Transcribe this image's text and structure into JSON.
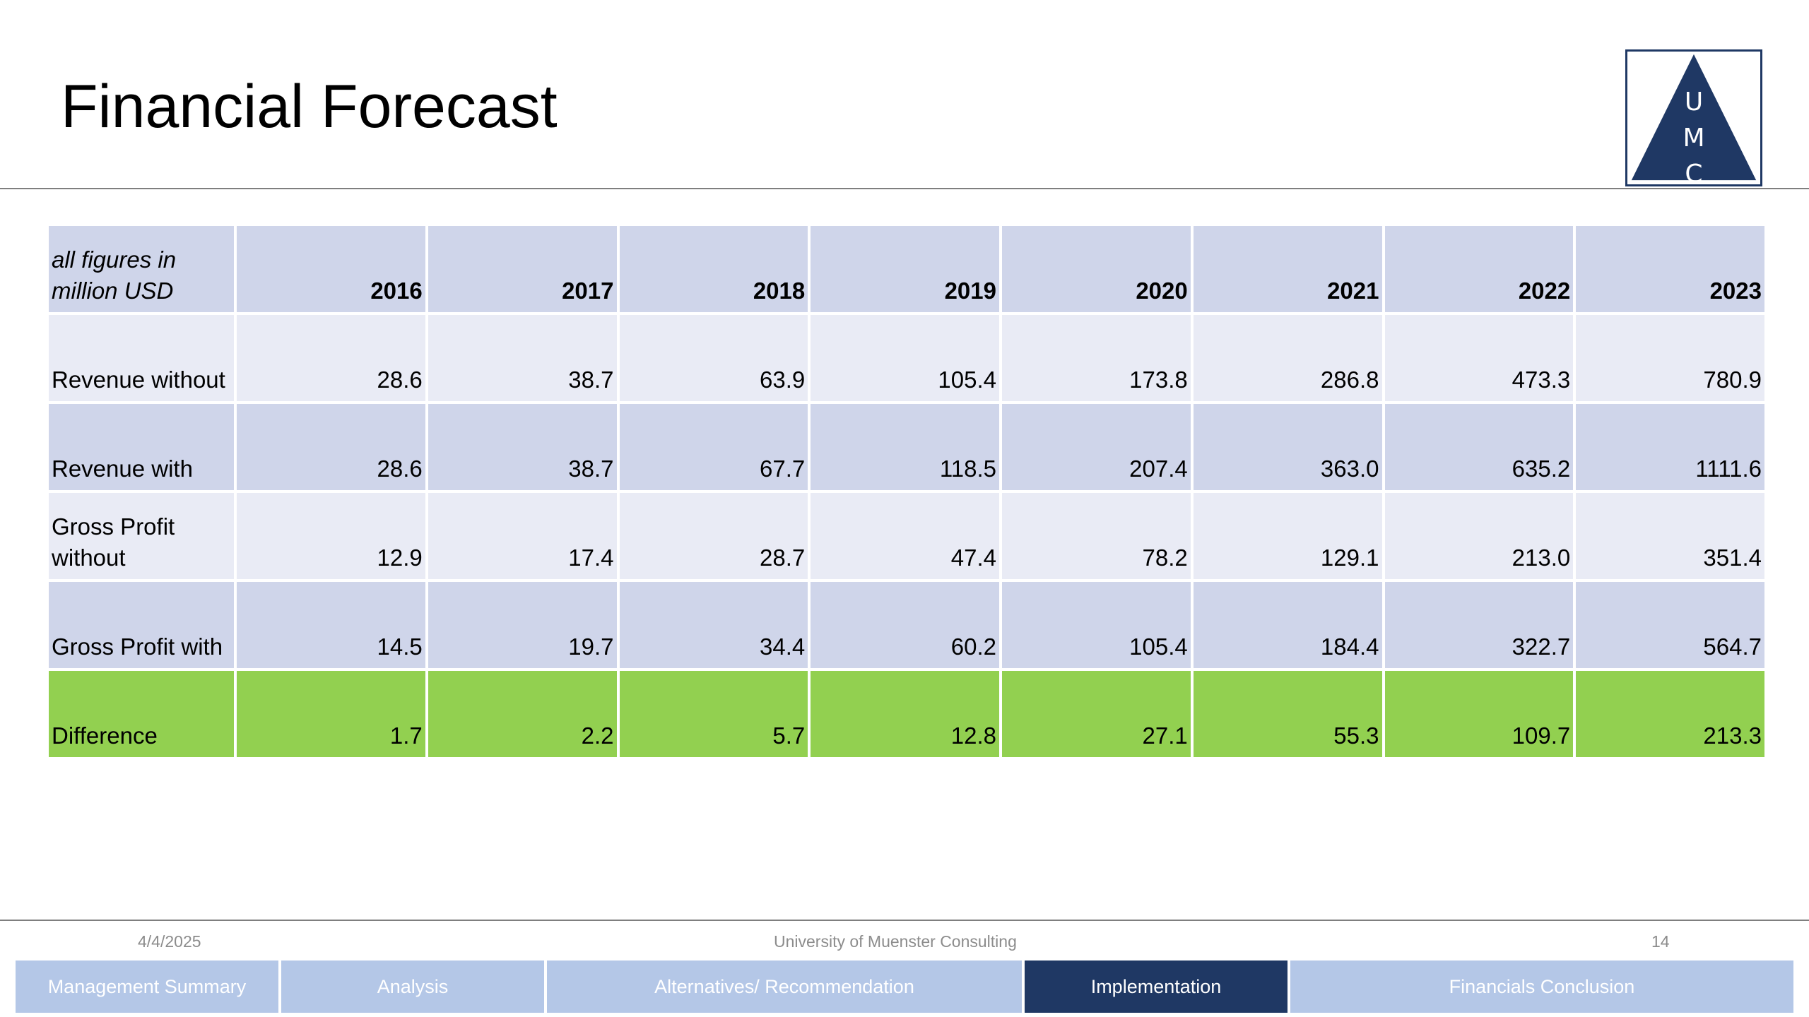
{
  "slide": {
    "title": "Financial Forecast"
  },
  "logo": {
    "letters": [
      "U",
      "M",
      "C"
    ],
    "color": "#1f3864"
  },
  "table": {
    "header_label": "all figures in million USD",
    "years": [
      "2016",
      "2017",
      "2018",
      "2019",
      "2020",
      "2021",
      "2022",
      "2023"
    ],
    "rows": [
      {
        "label": "Revenue without",
        "values": [
          "28.6",
          "38.7",
          "63.9",
          "105.4",
          "173.8",
          "286.8",
          "473.3",
          "780.9"
        ]
      },
      {
        "label": "Revenue with",
        "values": [
          "28.6",
          "38.7",
          "67.7",
          "118.5",
          "207.4",
          "363.0",
          "635.2",
          "1111.6"
        ]
      },
      {
        "label": "Gross Profit without",
        "values": [
          "12.9",
          "17.4",
          "28.7",
          "47.4",
          "78.2",
          "129.1",
          "213.0",
          "351.4"
        ]
      },
      {
        "label": "Gross Profit with",
        "values": [
          "14.5",
          "19.7",
          "34.4",
          "60.2",
          "105.4",
          "184.4",
          "322.7",
          "564.7"
        ]
      },
      {
        "label": "Difference",
        "values": [
          "1.7",
          "2.2",
          "5.7",
          "12.8",
          "27.1",
          "55.3",
          "109.7",
          "213.3"
        ]
      }
    ],
    "colors": {
      "header": "#cfd5ea",
      "band_light": "#e9ebf5",
      "band_dark": "#cfd5ea",
      "difference": "#92d050"
    }
  },
  "footer": {
    "date": "4/4/2025",
    "org": "University of Muenster Consulting",
    "page": "14"
  },
  "nav": {
    "tabs": [
      {
        "label": "Management Summary",
        "active": false
      },
      {
        "label": "Analysis",
        "active": false
      },
      {
        "label": "Alternatives/ Recommendation",
        "active": false
      },
      {
        "label": "Implementation",
        "active": true
      },
      {
        "label": "Financials Conclusion",
        "active": false
      }
    ],
    "colors": {
      "inactive": "#b4c7e7",
      "active": "#1f3864"
    }
  }
}
